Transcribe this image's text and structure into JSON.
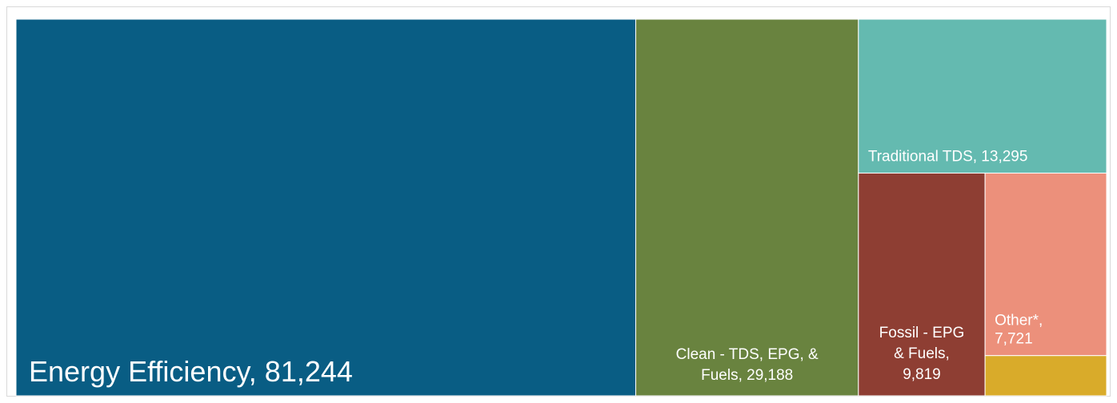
{
  "chart_data": {
    "type": "treemap",
    "title": "",
    "tiles": [
      {
        "name": "Energy Efficiency",
        "value": 81244,
        "label_lines": [
          "Energy Efficiency, 81,244"
        ],
        "color": "#095d84"
      },
      {
        "name": "Clean - TDS, EPG, & Fuels",
        "value": 29188,
        "label_lines": [
          "Clean - TDS, EPG, &",
          "Fuels, 29,188"
        ],
        "color": "#69833f"
      },
      {
        "name": "Traditional TDS",
        "value": 13295,
        "label_lines": [
          "Traditional TDS, 13,295"
        ],
        "color": "#64bab0"
      },
      {
        "name": "Fossil - EPG & Fuels",
        "value": 9819,
        "label_lines": [
          "Fossil - EPG",
          "& Fuels,",
          "9,819"
        ],
        "color": "#8e3e33"
      },
      {
        "name": "Other*",
        "value": 7721,
        "label_lines": [
          "Other*,",
          "7,721"
        ],
        "color": "#ec907b"
      },
      {
        "name": "",
        "value": 1700,
        "label_lines": [],
        "color": "#d9ab2a"
      }
    ]
  }
}
